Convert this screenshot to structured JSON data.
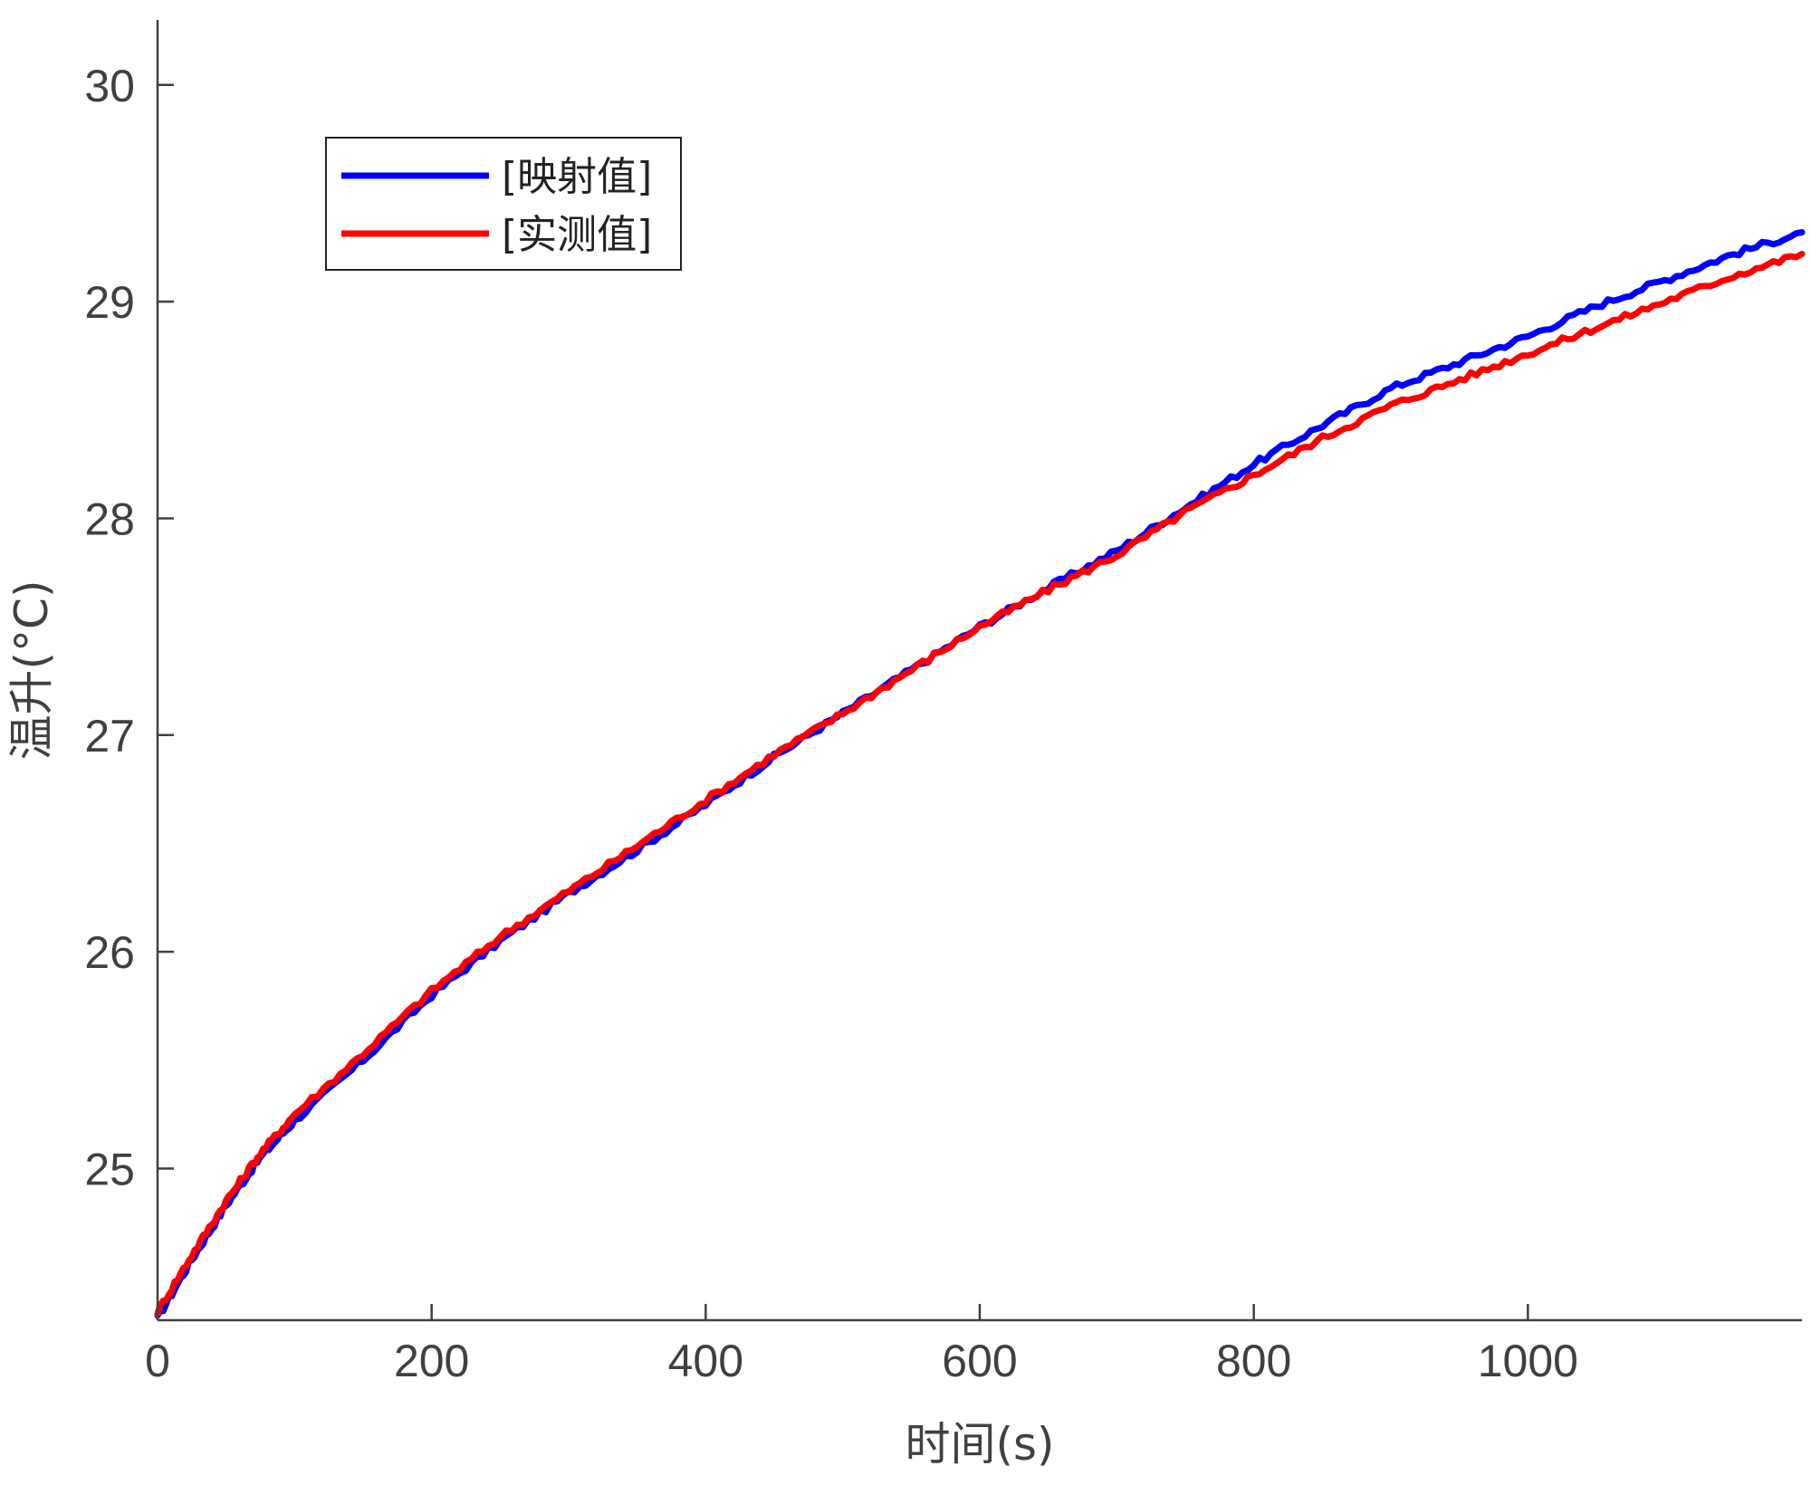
{
  "chart_data": {
    "type": "line",
    "xlabel": "时间(s)",
    "ylabel": "温升(°C)",
    "xlim": [
      0,
      1200
    ],
    "ylim": [
      24.3,
      30.3
    ],
    "xticks": [
      0,
      200,
      400,
      600,
      800,
      1000
    ],
    "yticks": [
      25,
      26,
      27,
      28,
      29,
      30
    ],
    "grid": false,
    "legend_position": "top-left",
    "series": [
      {
        "name": "[映射值]",
        "color": "#0000ff",
        "x": [
          0,
          25,
          50,
          75,
          100,
          150,
          200,
          250,
          300,
          350,
          400,
          450,
          500,
          550,
          600,
          650,
          700,
          750,
          800,
          850,
          900,
          950,
          1000,
          1050,
          1100,
          1150,
          1200
        ],
        "y": [
          24.31,
          24.58,
          24.83,
          25.05,
          25.22,
          25.5,
          25.8,
          26.05,
          26.27,
          26.47,
          26.68,
          26.9,
          27.1,
          27.3,
          27.5,
          27.68,
          27.85,
          28.05,
          28.25,
          28.43,
          28.6,
          28.72,
          28.84,
          28.98,
          29.1,
          29.22,
          29.32
        ]
      },
      {
        "name": "[实测值]",
        "color": "#ff0000",
        "x": [
          0,
          25,
          50,
          75,
          100,
          150,
          200,
          250,
          300,
          350,
          400,
          450,
          500,
          550,
          600,
          650,
          700,
          750,
          800,
          850,
          900,
          950,
          1000,
          1050,
          1100,
          1150,
          1200
        ],
        "y": [
          24.34,
          24.6,
          24.85,
          25.07,
          25.25,
          25.53,
          25.82,
          26.07,
          26.28,
          26.49,
          26.7,
          26.91,
          27.1,
          27.3,
          27.5,
          27.67,
          27.83,
          28.03,
          28.2,
          28.37,
          28.52,
          28.64,
          28.76,
          28.88,
          29.0,
          29.12,
          29.22
        ]
      }
    ]
  }
}
